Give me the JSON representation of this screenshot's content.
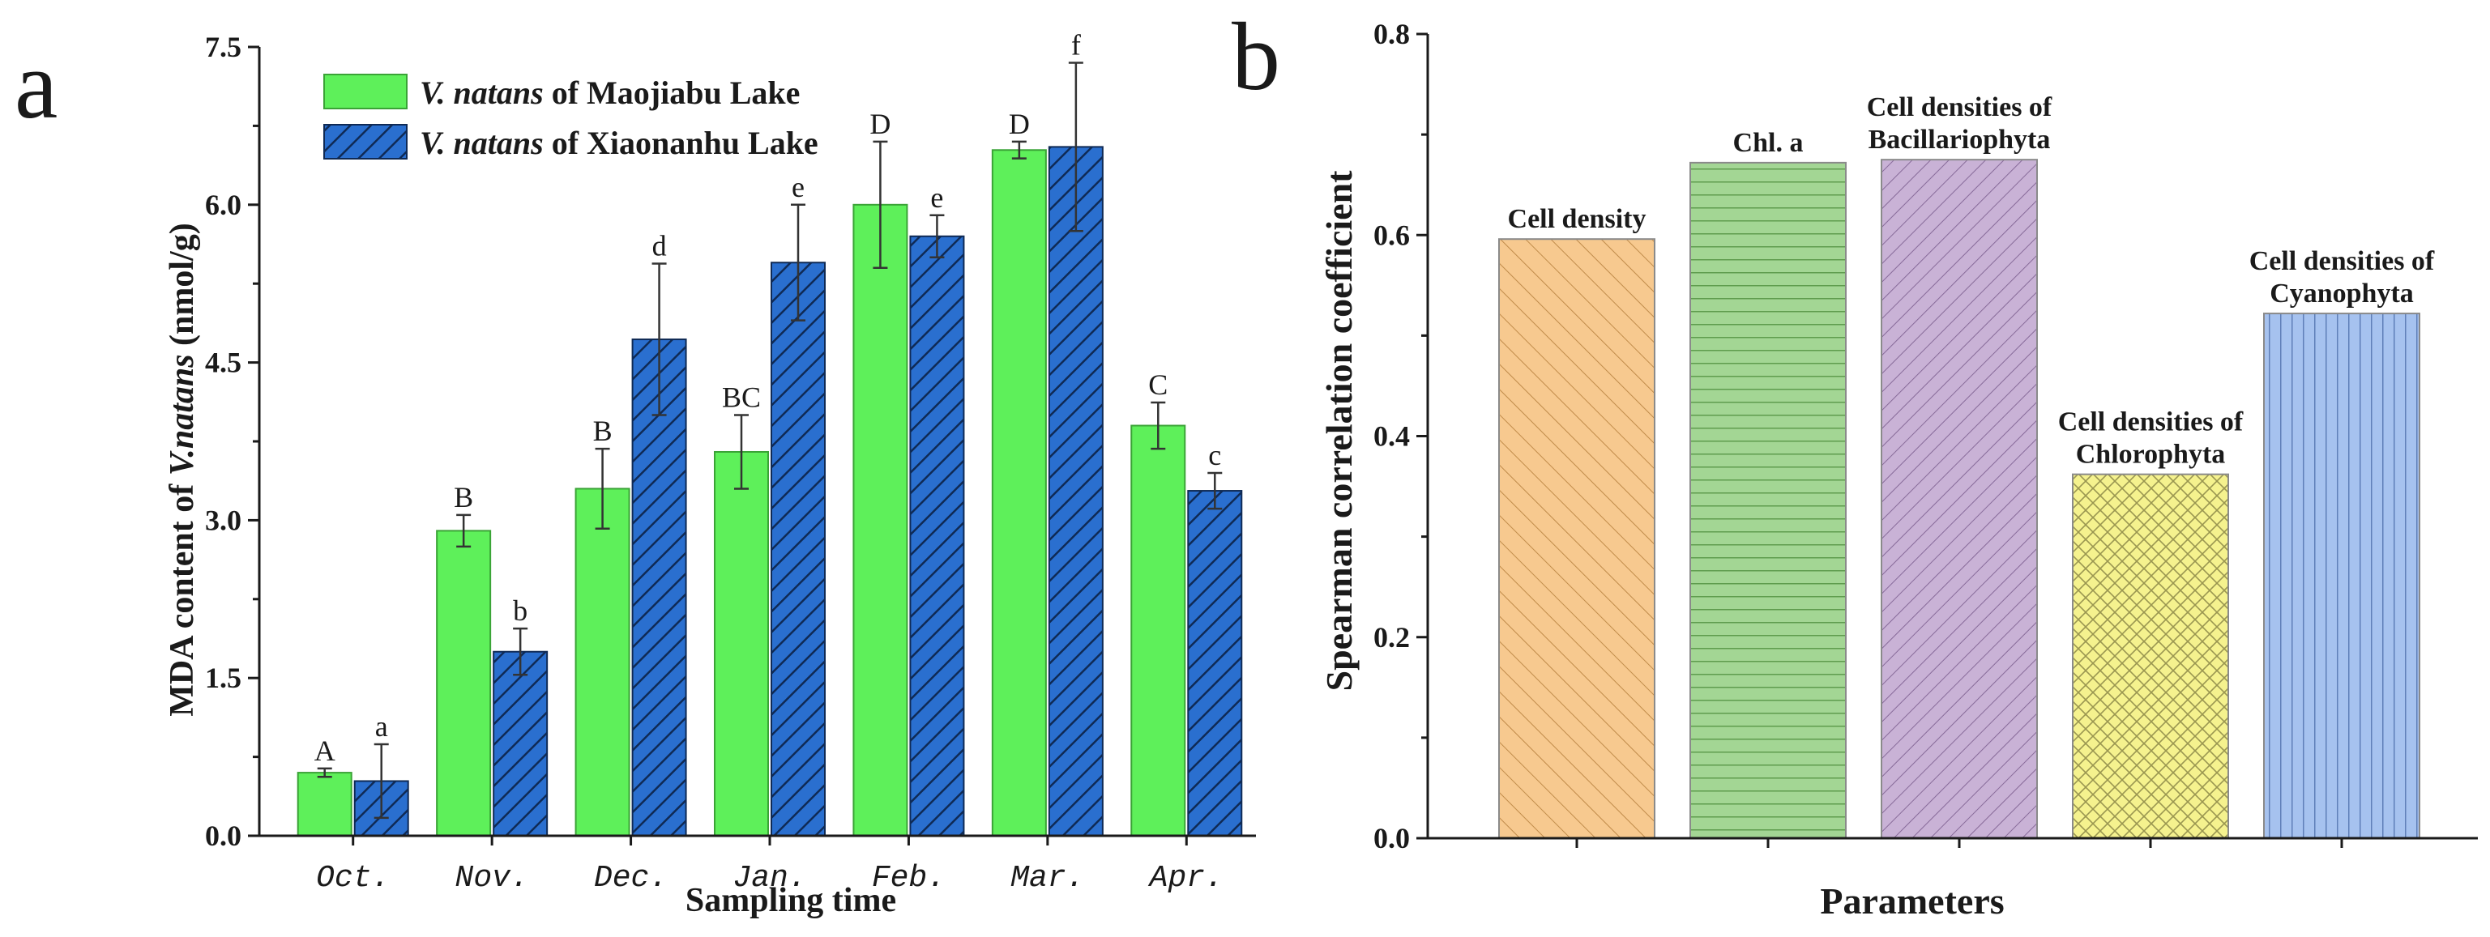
{
  "chart_data": [
    {
      "panel": "a",
      "type": "bar",
      "xlabel": "Sampling time",
      "ylabel": "MDA content of V.natans (nmol/g)",
      "ylabel_parts": [
        "MDA content of ",
        "V.natans",
        " (nmol/g)"
      ],
      "ylim": [
        0,
        7.5
      ],
      "yticks": [
        "0.0",
        "1.5",
        "3.0",
        "4.5",
        "6.0",
        "7.5"
      ],
      "categories": [
        "Oct.",
        "Nov.",
        "Dec.",
        "Jan.",
        "Feb.",
        "Mar.",
        "Apr."
      ],
      "series": [
        {
          "name": "V. natans of Maojiabu Lake",
          "name_italic": "V. natans",
          "name_rest": " of Maojiabu Lake",
          "color": "#5ef05a",
          "values": [
            0.6,
            2.9,
            3.3,
            3.65,
            6.0,
            6.52,
            3.9
          ],
          "errors": [
            0.04,
            0.15,
            0.38,
            0.35,
            0.6,
            0.08,
            0.22
          ],
          "labels": [
            "A",
            "B",
            "B",
            "BC",
            "D",
            "D",
            "C"
          ]
        },
        {
          "name": "V. natans of Xiaonanhu Lake",
          "name_italic": "V. natans",
          "name_rest": " of Xiaonanhu Lake",
          "color": "#2a6fcf",
          "values": [
            0.52,
            1.75,
            4.72,
            5.45,
            5.7,
            6.55,
            3.28
          ],
          "errors": [
            0.35,
            0.22,
            0.72,
            0.55,
            0.2,
            0.8,
            0.17
          ],
          "labels": [
            "a",
            "b",
            "d",
            "e",
            "e",
            "f",
            "c"
          ]
        }
      ]
    },
    {
      "panel": "b",
      "type": "bar",
      "xlabel": "Parameters",
      "ylabel": "Spearman correlation coefficient",
      "ylim": [
        0,
        0.8
      ],
      "yticks": [
        "0.0",
        "0.2",
        "0.4",
        "0.6",
        "0.8"
      ],
      "categories": [
        {
          "lines": [
            "Cell density"
          ],
          "value": 0.596,
          "color": "#f7c98f"
        },
        {
          "lines": [
            "Chl. a"
          ],
          "value": 0.672,
          "color": "#a3d694"
        },
        {
          "lines": [
            "Cell densities of",
            "Bacillariophyta"
          ],
          "value": 0.675,
          "color": "#c9b2d6"
        },
        {
          "lines": [
            "Cell densities of",
            "Chlorophyta"
          ],
          "value": 0.362,
          "color": "#f5f28e"
        },
        {
          "lines": [
            "Cell densities of",
            "Cyanophyta"
          ],
          "value": 0.522,
          "color": "#a6c2ef"
        }
      ]
    }
  ]
}
